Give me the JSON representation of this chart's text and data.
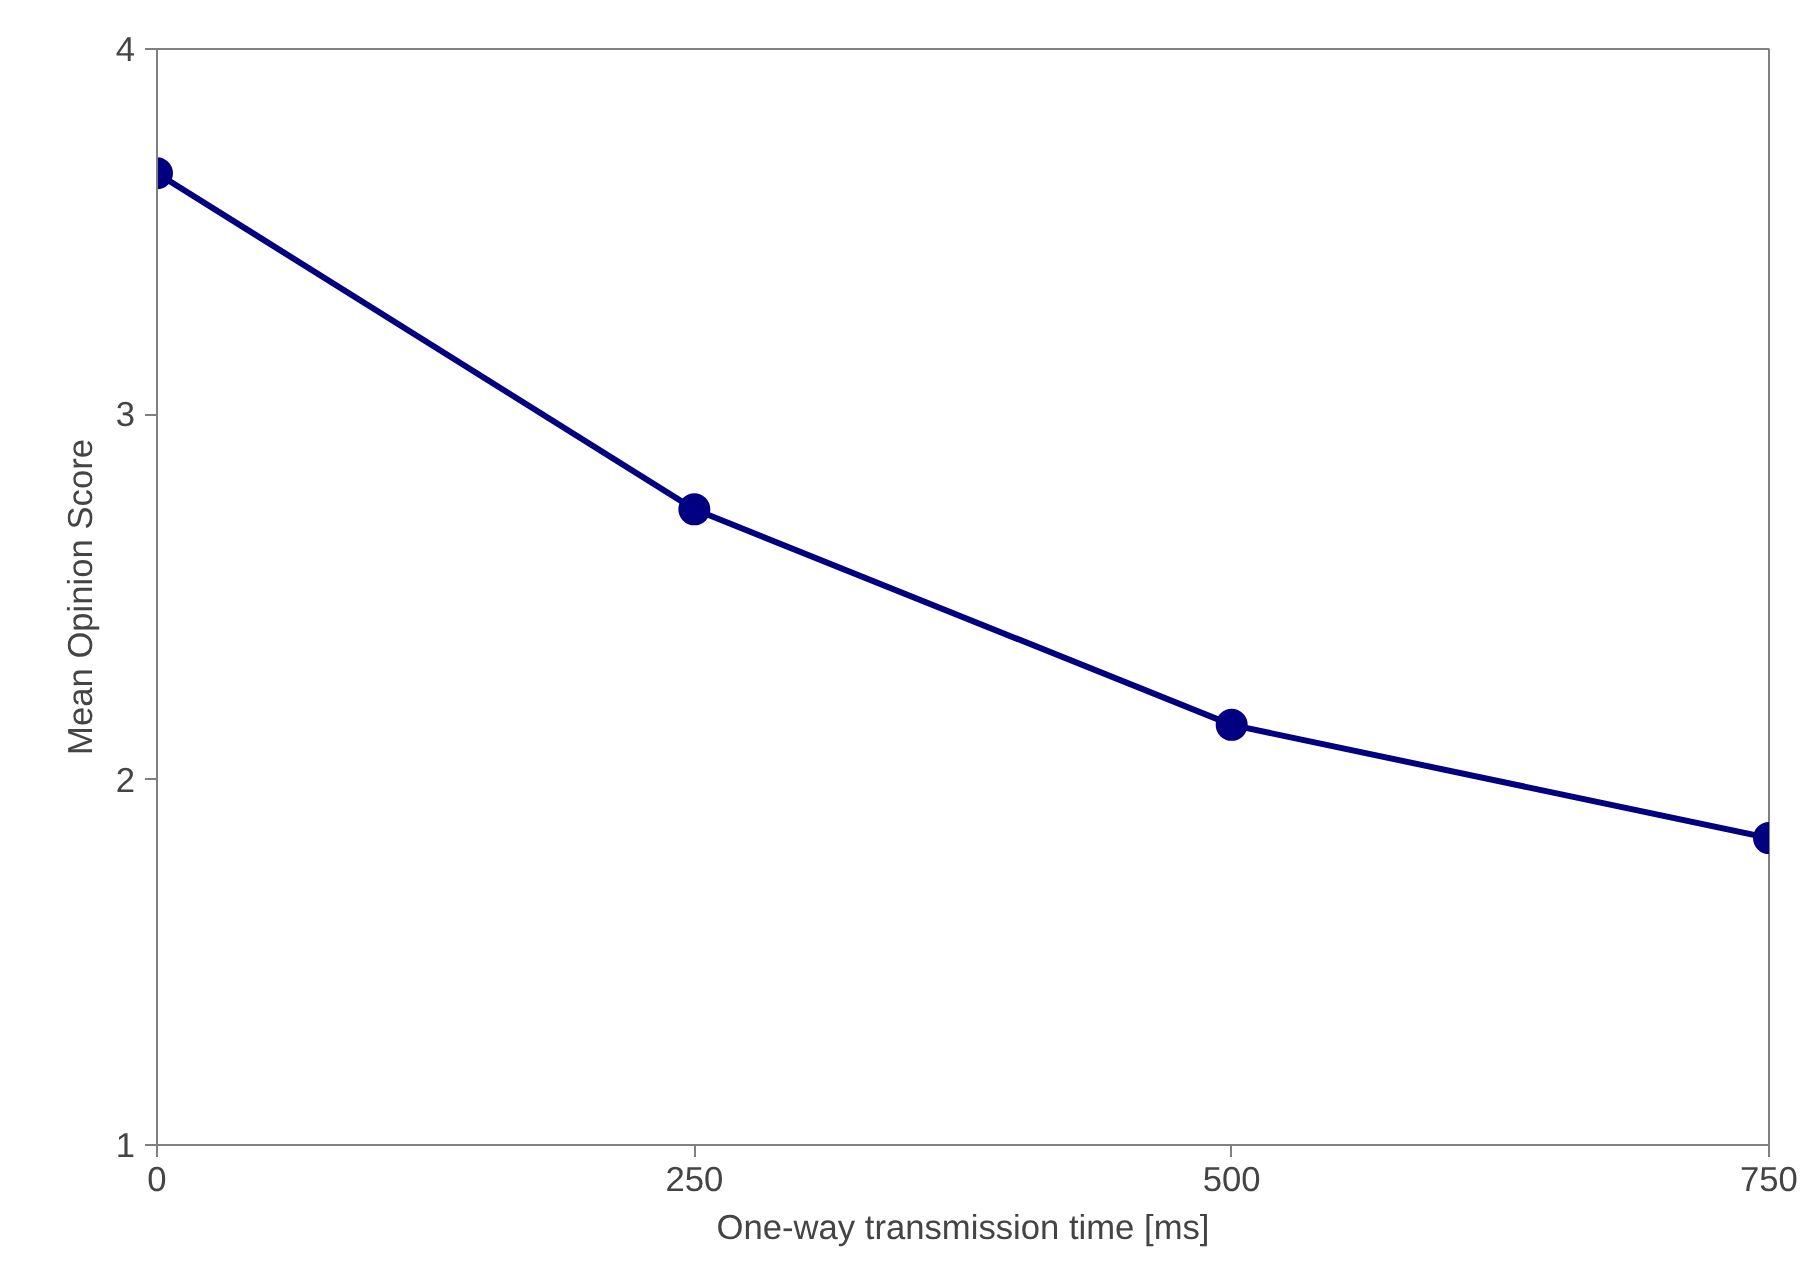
{
  "chart_data": {
    "type": "line",
    "xlabel": "One-way transmission time [ms]",
    "ylabel": "Mean Opinion Score",
    "x": [
      0,
      250,
      500,
      750
    ],
    "series": [
      {
        "color": "#000080",
        "values": [
          3.66,
          2.74,
          2.15,
          1.84
        ]
      }
    ],
    "xlim": [
      0,
      750
    ],
    "xticks": [
      0,
      250,
      500,
      750
    ],
    "ylim": [
      1,
      4
    ],
    "yticks": [
      1,
      2,
      3,
      4
    ],
    "grid": false,
    "marker": "circle",
    "line_style": "solid"
  }
}
